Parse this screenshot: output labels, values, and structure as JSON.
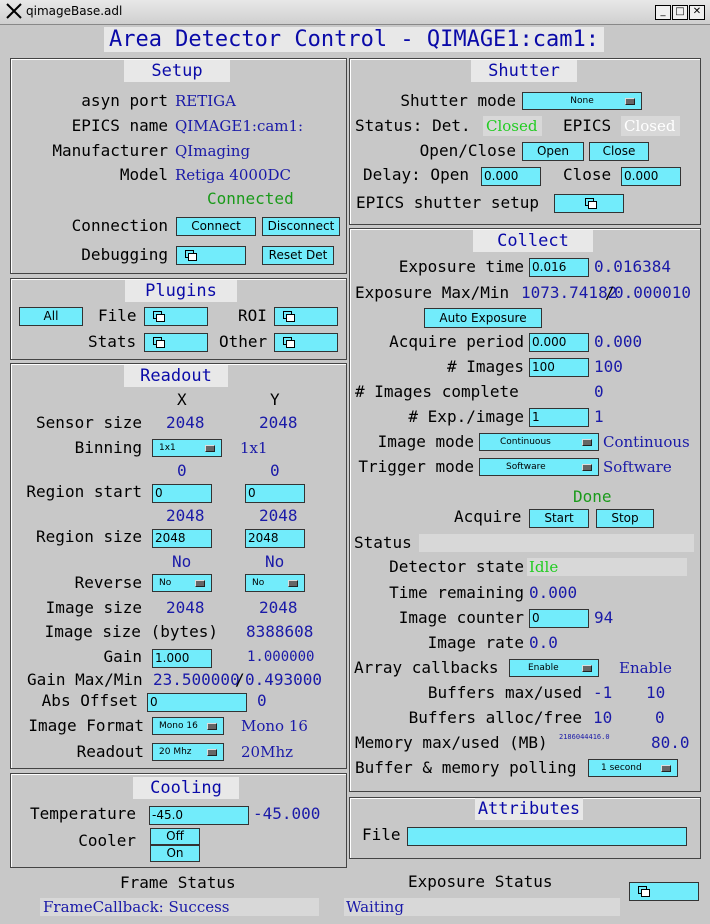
{
  "window": {
    "title": "qimageBase.adl"
  },
  "header": {
    "title": "Area Detector Control - QIMAGE1:cam1:"
  },
  "setup": {
    "title": "Setup",
    "asyn_port_label": "asyn port",
    "asyn_port_value": "RETIGA",
    "epics_name_label": "EPICS name",
    "epics_name_value": "QIMAGE1:cam1:",
    "manufacturer_label": "Manufacturer",
    "manufacturer_value": "QImaging",
    "model_label": "Model",
    "model_value": "Retiga 4000DC",
    "connected_status": "Connected",
    "connection_label": "Connection",
    "connect_label": "Connect",
    "disconnect_label": "Disconnect",
    "debugging_label": "Debugging",
    "reset_label": "Reset Det"
  },
  "plugins": {
    "title": "Plugins",
    "all_label": "All",
    "file_label": "File",
    "roi_label": "ROI",
    "stats_label": "Stats",
    "other_label": "Other"
  },
  "readout": {
    "title": "Readout",
    "x_header": "X",
    "y_header": "Y",
    "sensor_size_label": "Sensor size",
    "sensor_x": "2048",
    "sensor_y": "2048",
    "binning_label": "Binning",
    "binning_menu": "1x1",
    "binning_value": "1x1",
    "region_start_label": "Region start",
    "start_x_rbv": "0",
    "start_y_rbv": "0",
    "start_x_input": "0",
    "start_y_input": "0",
    "region_size_label": "Region size",
    "size_x_rbv": "2048",
    "size_y_rbv": "2048",
    "size_x_input": "2048",
    "size_y_input": "2048",
    "reverse_label": "Reverse",
    "reverse_x_rbv": "No",
    "reverse_y_rbv": "No",
    "reverse_x_menu": "No",
    "reverse_y_menu": "No",
    "image_size_label": "Image size",
    "image_size_x": "2048",
    "image_size_y": "2048",
    "image_bytes_label": "Image size (bytes)",
    "image_bytes": "8388608",
    "gain_label": "Gain",
    "gain_input": "1.000",
    "gain_rbv": "1.000000",
    "gain_maxmin_label": "Gain Max/Min",
    "gain_max": "23.500000",
    "gain_sep": "/",
    "gain_min": "0.493000",
    "abs_offset_label": "Abs Offset",
    "abs_offset_input": "0",
    "abs_offset_rbv": "0",
    "image_format_label": "Image Format",
    "image_format_menu": "Mono 16",
    "image_format_rbv": "Mono 16",
    "readout_label": "Readout",
    "readout_menu": "20 Mhz",
    "readout_rbv": "20Mhz"
  },
  "cooling": {
    "title": "Cooling",
    "temperature_label": "Temperature",
    "temperature_input": "-45.0",
    "temperature_rbv": "-45.000",
    "cooler_label": "Cooler",
    "off_label": "Off",
    "on_label": "On"
  },
  "shutter": {
    "title": "Shutter",
    "mode_label": "Shutter mode",
    "mode_menu": "None",
    "status_label": "Status: Det.",
    "det_status": "Closed",
    "epics_label": "EPICS",
    "epics_status": "Closed",
    "open_close_label": "Open/Close",
    "open_label": "Open",
    "close_button_label": "Close",
    "delay_label": "Delay: Open",
    "delay_open": "0.000",
    "delay_close_label": "Close",
    "delay_close": "0.000",
    "setup_label": "EPICS shutter setup"
  },
  "collect": {
    "title": "Collect",
    "exposure_label": "Exposure time",
    "exposure_input": "0.016",
    "exposure_rbv": "0.016384",
    "exp_maxmin_label": "Exposure Max/Min",
    "exp_max": "1073.74182",
    "exp_sep": "/",
    "exp_min": "0.000010",
    "auto_exposure_label": "Auto Exposure",
    "acquire_period_label": "Acquire period",
    "acquire_period_input": "0.000",
    "acquire_period_rbv": "0.000",
    "images_label": "# Images",
    "images_input": "100",
    "images_rbv": "100",
    "images_complete_label": "# Images complete",
    "images_complete": "0",
    "exp_per_image_label": "# Exp./image",
    "exp_per_image_input": "1",
    "exp_per_image_rbv": "1",
    "image_mode_label": "Image mode",
    "image_mode_menu": "Continuous",
    "image_mode_rbv": "Continuous",
    "trigger_mode_label": "Trigger mode",
    "trigger_mode_menu": "Software",
    "trigger_mode_rbv": "Software",
    "done_status": "Done",
    "acquire_label": "Acquire",
    "start_label": "Start",
    "stop_label": "Stop",
    "status_label": "Status",
    "status_value": "",
    "detector_state_label": "Detector state",
    "detector_state": "Idle",
    "time_remaining_label": "Time remaining",
    "time_remaining": "0.000",
    "image_counter_label": "Image counter",
    "image_counter_input": "0",
    "image_counter_rbv": "94",
    "image_rate_label": "Image rate",
    "image_rate": "0.0",
    "array_callbacks_label": "Array callbacks",
    "array_callbacks_menu": "Enable",
    "array_callbacks_rbv": "Enable",
    "buffers_maxused_label": "Buffers max/used",
    "buffers_max": "-1",
    "buffers_used": "10",
    "buffers_allocfree_label": "Buffers alloc/free",
    "buffers_alloc": "10",
    "buffers_free": "0",
    "memory_label": "Memory max/used (MB)",
    "memory_max": "2186044416.0",
    "memory_used": "80.0",
    "polling_label": "Buffer & memory polling",
    "polling_menu": "1 second"
  },
  "attributes": {
    "title": "Attributes",
    "file_label": "File",
    "file_input": ""
  },
  "footer": {
    "frame_status_label": "Frame Status",
    "frame_status_value": "FrameCallback: Success",
    "exposure_status_label": "Exposure Status",
    "exposure_status_value": "Waiting"
  }
}
